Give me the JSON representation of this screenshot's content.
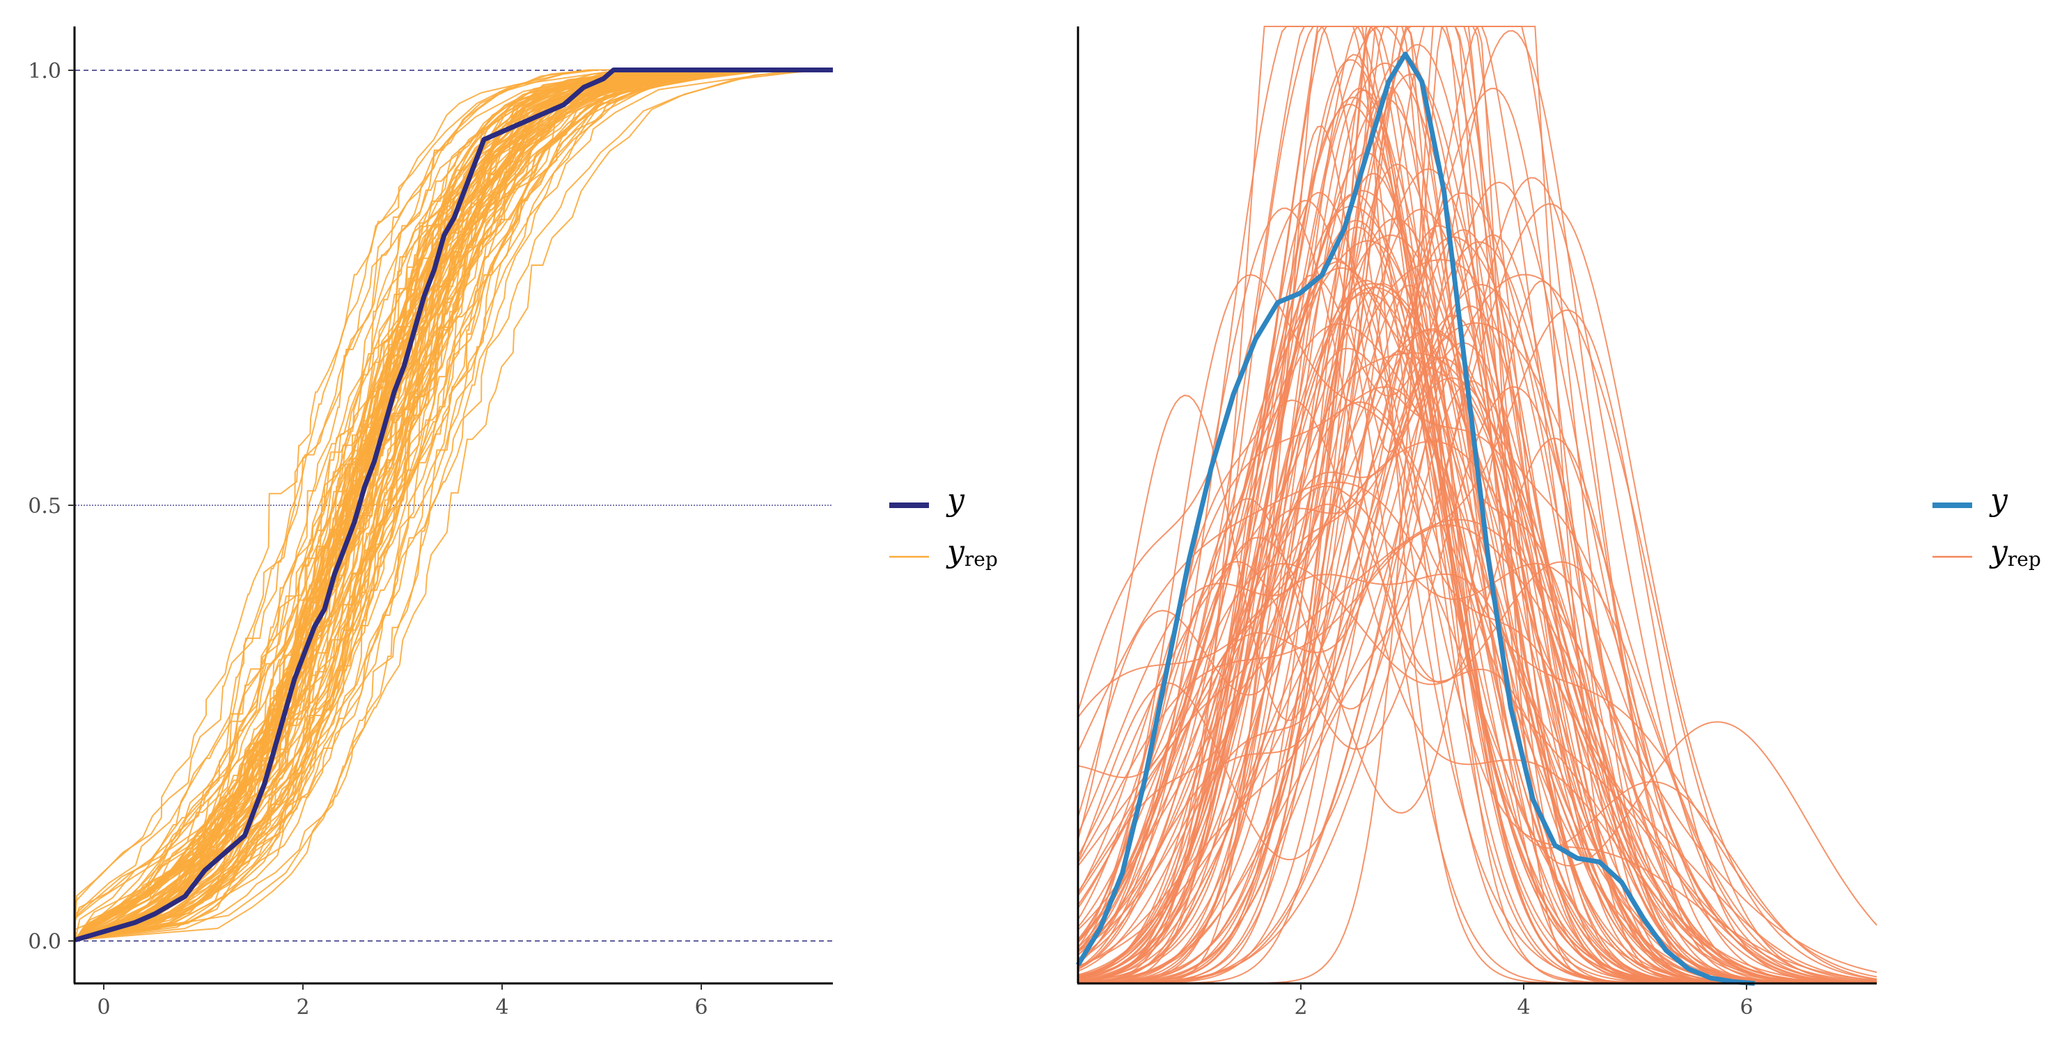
{
  "chart_data": [
    {
      "type": "line",
      "subtype": "ecdf",
      "title": "",
      "xlabel": "",
      "ylabel": "",
      "xlim": [
        -0.3,
        7.3
      ],
      "ylim": [
        -0.05,
        1.05
      ],
      "x_ticks": [
        "0",
        "2",
        "4",
        "6"
      ],
      "y_ticks": [
        "0.0",
        "0.5",
        "1.0"
      ],
      "reference_lines_y": [
        0,
        0.5,
        1
      ],
      "legend_position": "right",
      "legend": {
        "y_label": "y",
        "yrep_label": "y",
        "yrep_sub": "rep"
      },
      "colors": {
        "y": "#2b2b7f",
        "yrep": "#fbab3c",
        "ref": "#2b2b7f"
      },
      "series": [
        {
          "name": "y",
          "role": "observed",
          "x": [
            -0.3,
            0.0,
            0.3,
            0.5,
            0.8,
            1.0,
            1.2,
            1.4,
            1.6,
            1.7,
            1.8,
            1.9,
            2.0,
            2.1,
            2.2,
            2.3,
            2.4,
            2.5,
            2.6,
            2.7,
            2.8,
            2.9,
            3.0,
            3.1,
            3.2,
            3.3,
            3.4,
            3.5,
            3.6,
            3.7,
            3.8,
            4.0,
            4.2,
            4.4,
            4.6,
            4.8,
            5.0,
            5.1,
            7.3
          ],
          "y": [
            0.0,
            0.01,
            0.02,
            0.03,
            0.05,
            0.08,
            0.1,
            0.12,
            0.18,
            0.22,
            0.26,
            0.3,
            0.33,
            0.36,
            0.38,
            0.42,
            0.45,
            0.48,
            0.52,
            0.55,
            0.59,
            0.63,
            0.66,
            0.7,
            0.74,
            0.77,
            0.81,
            0.83,
            0.86,
            0.89,
            0.92,
            0.93,
            0.94,
            0.95,
            0.96,
            0.98,
            0.99,
            1.0,
            1.0
          ]
        },
        {
          "name": "y_rep",
          "role": "replicated",
          "draws": 100,
          "base_x": [
            -0.3,
            0.0,
            0.5,
            1.0,
            1.5,
            2.0,
            2.5,
            3.0,
            3.5,
            4.0,
            4.5,
            5.0,
            5.5,
            6.0,
            7.3
          ],
          "base_y": [
            0.0,
            0.01,
            0.04,
            0.09,
            0.17,
            0.3,
            0.47,
            0.64,
            0.8,
            0.9,
            0.96,
            0.985,
            0.995,
            1.0,
            1.0
          ],
          "x_spread": 0.45
        }
      ]
    },
    {
      "type": "line",
      "subtype": "density",
      "title": "",
      "xlabel": "",
      "ylabel": "",
      "xlim": [
        0.0,
        7.2
      ],
      "ylim": [
        0.0,
        0.52
      ],
      "x_ticks": [
        "2",
        "4",
        "6"
      ],
      "y_ticks": [],
      "legend_position": "right",
      "legend": {
        "y_label": "y",
        "yrep_label": "y",
        "yrep_sub": "rep"
      },
      "colors": {
        "y": "#2e86c1",
        "yrep": "#f4875a"
      },
      "series": [
        {
          "name": "y",
          "role": "observed",
          "x": [
            0.0,
            0.2,
            0.4,
            0.6,
            0.8,
            1.0,
            1.2,
            1.4,
            1.6,
            1.8,
            2.0,
            2.2,
            2.4,
            2.6,
            2.8,
            2.95,
            3.1,
            3.3,
            3.5,
            3.7,
            3.9,
            4.1,
            4.3,
            4.5,
            4.7,
            4.9,
            5.1,
            5.3,
            5.5,
            5.7,
            5.9,
            6.1
          ],
          "y": [
            0.01,
            0.03,
            0.06,
            0.11,
            0.17,
            0.23,
            0.28,
            0.32,
            0.35,
            0.37,
            0.375,
            0.385,
            0.41,
            0.45,
            0.49,
            0.505,
            0.49,
            0.43,
            0.33,
            0.23,
            0.15,
            0.1,
            0.075,
            0.068,
            0.066,
            0.055,
            0.035,
            0.018,
            0.008,
            0.003,
            0.001,
            0.0
          ]
        },
        {
          "name": "y_rep",
          "role": "replicated",
          "draws": 100,
          "base_mean": 2.75,
          "base_sd": 1.15,
          "base_peak": 0.46
        }
      ]
    }
  ]
}
